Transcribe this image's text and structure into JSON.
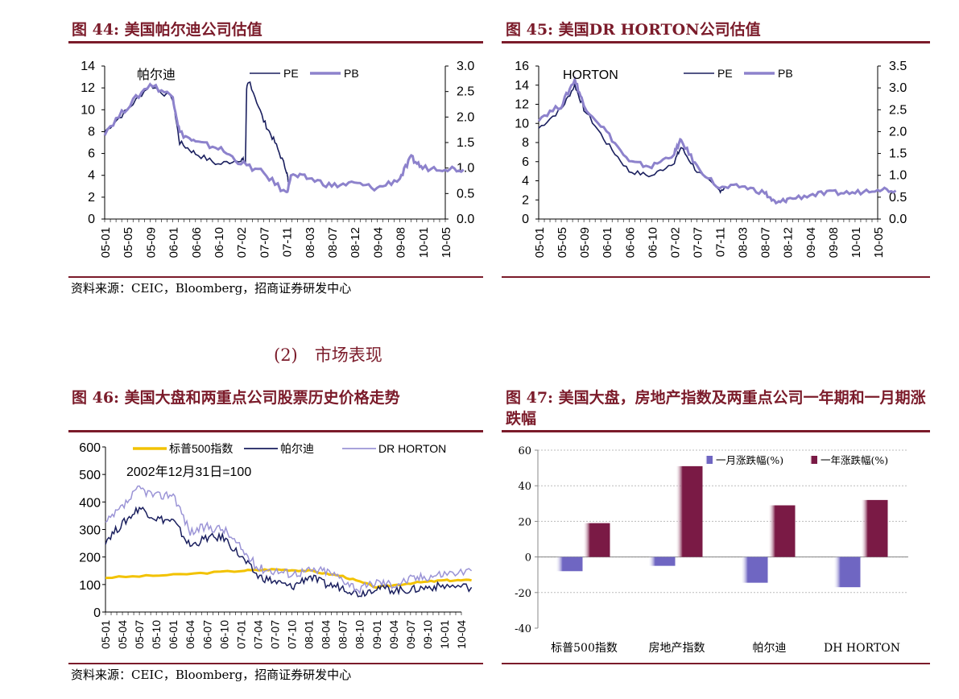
{
  "colors": {
    "accent": "#7b1b2a",
    "pe": "#1a1f5e",
    "pb": "#8d82cc",
    "sp500": "#f2c200",
    "pulte": "#1a1f5e",
    "horton": "#9b94d6",
    "bar_month": "#6f66c2",
    "bar_year": "#7a1a45"
  },
  "fig44": {
    "title": "图 44: 美国帕尔迪公司估值",
    "source": "资料来源：CEIC，Bloomberg，招商证券研发中心",
    "chart_data": {
      "type": "line",
      "annotation": "帕尔迪",
      "x_ticks": [
        "05-01",
        "05-05",
        "05-09",
        "06-01",
        "06-06",
        "06-10",
        "07-02",
        "07-07",
        "07-11",
        "08-03",
        "08-07",
        "08-12",
        "09-04",
        "09-08",
        "10-01",
        "10-05"
      ],
      "y_left": {
        "ticks": [
          "0",
          "2",
          "4",
          "6",
          "8",
          "10",
          "12",
          "14"
        ],
        "range": [
          0,
          14
        ]
      },
      "y_right": {
        "ticks": [
          "0.0",
          "0.5",
          "1.0",
          "1.5",
          "2.0",
          "2.5",
          "3.0"
        ],
        "range": [
          0,
          3
        ]
      },
      "series": [
        {
          "name": "PE",
          "axis": "left",
          "x": [
            0,
            1,
            2,
            3,
            3.3,
            4,
            5,
            6,
            6.2,
            6.25,
            6.4,
            7,
            7.5,
            8,
            8.1
          ],
          "y": [
            8,
            10,
            12.3,
            11,
            7,
            6,
            5,
            5.5,
            5.2,
            12,
            12.5,
            9,
            7,
            4.5,
            3.2
          ]
        },
        {
          "name": "PB",
          "axis": "right",
          "x": [
            0,
            1,
            2,
            3,
            3.3,
            4,
            5,
            6,
            7,
            8,
            8.2,
            9,
            10,
            11,
            12,
            13,
            13.5,
            14,
            15,
            15.8
          ],
          "y": [
            1.7,
            2.2,
            2.65,
            2.4,
            1.7,
            1.5,
            1.4,
            1.1,
            0.9,
            0.5,
            0.85,
            0.8,
            0.65,
            0.7,
            0.6,
            0.8,
            1.2,
            1.0,
            1.0,
            0.97
          ]
        }
      ]
    }
  },
  "fig45": {
    "title": "图 45: 美国DR HORTON公司估值",
    "chart_data": {
      "type": "line",
      "annotation": "HORTON",
      "x_ticks": [
        "05-01",
        "05-05",
        "05-09",
        "06-01",
        "06-06",
        "06-10",
        "07-02",
        "07-07",
        "07-11",
        "08-03",
        "08-07",
        "08-12",
        "09-04",
        "09-08",
        "10-01",
        "10-05"
      ],
      "y_left": {
        "ticks": [
          "0",
          "2",
          "4",
          "6",
          "8",
          "10",
          "12",
          "14",
          "16"
        ],
        "range": [
          0,
          16
        ]
      },
      "y_right": {
        "ticks": [
          "0.0",
          "0.5",
          "1.0",
          "1.5",
          "2.0",
          "2.5",
          "3.0",
          "3.5"
        ],
        "range": [
          0,
          3.5
        ]
      },
      "series": [
        {
          "name": "PE",
          "axis": "left",
          "x": [
            0,
            1,
            1.6,
            2,
            3,
            4,
            5,
            6,
            6.3,
            7,
            8,
            8.3
          ],
          "y": [
            9.5,
            11.5,
            14,
            11.5,
            8,
            5,
            4.5,
            6,
            7.5,
            5,
            3,
            3.3
          ]
        },
        {
          "name": "PB",
          "axis": "right",
          "x": [
            0,
            1,
            1.6,
            2,
            3,
            4,
            5,
            6,
            6.3,
            7,
            8,
            9,
            10,
            10.5,
            11,
            12,
            13,
            14,
            15,
            15.8
          ],
          "y": [
            2.3,
            2.6,
            3.2,
            2.6,
            2.0,
            1.3,
            1.2,
            1.5,
            1.8,
            1.2,
            0.7,
            0.75,
            0.6,
            0.35,
            0.45,
            0.55,
            0.6,
            0.6,
            0.7,
            0.65
          ]
        }
      ]
    }
  },
  "section_heading": "(2)　市场表现",
  "fig46": {
    "title": "图 46: 美国大盘和两重点公司股票历史价格走势",
    "source": "资料来源：CEIC，Bloomberg，招商证券研发中心",
    "chart_data": {
      "type": "line",
      "annotation": "2002年12月31日=100",
      "x_ticks": [
        "05-01",
        "05-04",
        "05-07",
        "05-10",
        "06-01",
        "06-04",
        "06-07",
        "06-10",
        "07-01",
        "07-04",
        "07-07",
        "07-10",
        "08-01",
        "08-04",
        "08-07",
        "08-10",
        "09-01",
        "09-04",
        "09-07",
        "09-10",
        "10-01",
        "10-04"
      ],
      "y_ticks": [
        "0",
        "100",
        "200",
        "300",
        "400",
        "500",
        "600"
      ],
      "ylim": [
        0,
        600
      ],
      "series": [
        {
          "name": "标普500指数",
          "x": [
            0,
            4,
            8,
            10,
            12,
            14,
            16,
            18,
            20,
            21.6
          ],
          "y": [
            125,
            135,
            150,
            155,
            150,
            130,
            90,
            105,
            115,
            115
          ]
        },
        {
          "name": "帕尔迪",
          "x": [
            0,
            1,
            2,
            3,
            4,
            5,
            6,
            7,
            8,
            9,
            10,
            11,
            12,
            13,
            14,
            15,
            16,
            17,
            18,
            19,
            20,
            21.6
          ],
          "y": [
            260,
            320,
            380,
            340,
            330,
            240,
            270,
            270,
            200,
            130,
            110,
            90,
            130,
            100,
            90,
            65,
            90,
            80,
            80,
            90,
            95,
            90
          ]
        },
        {
          "name": "DR HORTON",
          "x": [
            0,
            1,
            2,
            3,
            4,
            5,
            6,
            7,
            8,
            9,
            10,
            11,
            12,
            13,
            14,
            15,
            16,
            17,
            18,
            19,
            20,
            21.6
          ],
          "y": [
            320,
            380,
            450,
            420,
            430,
            290,
            310,
            300,
            230,
            160,
            150,
            140,
            150,
            150,
            120,
            80,
            110,
            100,
            120,
            130,
            140,
            150
          ]
        }
      ]
    }
  },
  "fig47": {
    "title": "图 47: 美国大盘，房地产指数及两重点公司一年期和一月期涨跌幅",
    "chart_data": {
      "type": "bar",
      "categories": [
        "标普500指数",
        "房地产指数",
        "帕尔迪",
        "DH HORTON"
      ],
      "series": [
        {
          "name": "一月涨跌幅(%)",
          "values": [
            -8,
            -5,
            -14.5,
            -17
          ]
        },
        {
          "name": "一年涨跌幅(%)",
          "values": [
            19,
            51,
            29,
            32
          ]
        }
      ],
      "y_ticks": [
        "60",
        "40",
        "20",
        "0",
        "-20",
        "-40"
      ],
      "ylim": [
        -40,
        60
      ],
      "grid": true,
      "legend": "top"
    }
  }
}
